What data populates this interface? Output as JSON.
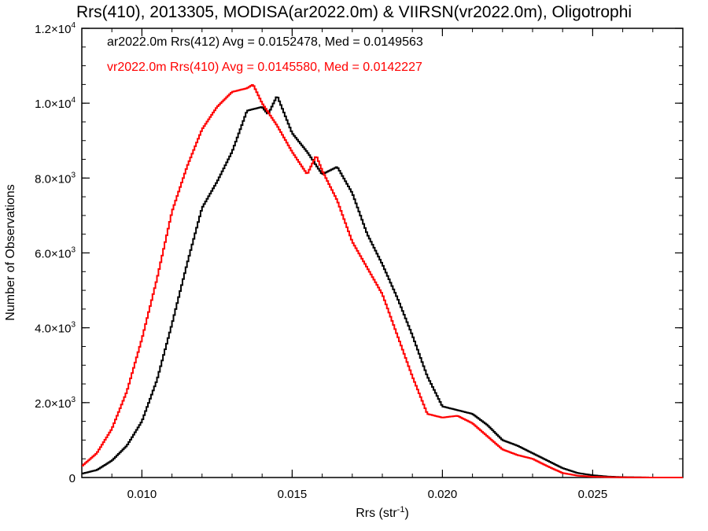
{
  "chart_data": {
    "type": "line",
    "title": "Rrs(410), 2013305, MODISA(ar2022.0m) & VIIRSN(vr2022.0m), Oligotrophi",
    "xlabel": "Rrs (str",
    "xlabel_sup": "-1",
    "xlabel_end": ")",
    "ylabel": "Number of Observations",
    "xlim": [
      0.008,
      0.028
    ],
    "ylim": [
      0,
      12000
    ],
    "xticks": [
      {
        "value": 0.01,
        "label": "0.010"
      },
      {
        "value": 0.015,
        "label": "0.015"
      },
      {
        "value": 0.02,
        "label": "0.020"
      },
      {
        "value": 0.025,
        "label": "0.025"
      }
    ],
    "yticks": [
      {
        "value": 0,
        "label": "0",
        "exp": ""
      },
      {
        "value": 2000,
        "label": "2.0×10",
        "exp": "3"
      },
      {
        "value": 4000,
        "label": "4.0×10",
        "exp": "3"
      },
      {
        "value": 6000,
        "label": "6.0×10",
        "exp": "3"
      },
      {
        "value": 8000,
        "label": "8.0×10",
        "exp": "3"
      },
      {
        "value": 10000,
        "label": "1.0×10",
        "exp": "4"
      },
      {
        "value": 12000,
        "label": "1.2×10",
        "exp": "4"
      }
    ],
    "grid": false,
    "annotations": [
      {
        "text": "ar2022.0m Rrs(412) Avg = 0.0152478, Med = 0.0149563",
        "color": "#000000"
      },
      {
        "text": "vr2022.0m Rrs(410) Avg = 0.0145580, Med = 0.0142227",
        "color": "#ff0000"
      }
    ],
    "series": [
      {
        "color": "#000000",
        "x": [
          0.008,
          0.0085,
          0.009,
          0.0095,
          0.01,
          0.0105,
          0.011,
          0.0115,
          0.012,
          0.0125,
          0.013,
          0.0135,
          0.014,
          0.0142,
          0.0145,
          0.015,
          0.0155,
          0.016,
          0.0165,
          0.017,
          0.0175,
          0.018,
          0.0185,
          0.019,
          0.0195,
          0.02,
          0.0205,
          0.021,
          0.0215,
          0.022,
          0.0225,
          0.023,
          0.0235,
          0.024,
          0.0245,
          0.025,
          0.0255,
          0.026,
          0.0265,
          0.027,
          0.028
        ],
        "y": [
          100,
          200,
          450,
          850,
          1500,
          2600,
          4100,
          5700,
          7200,
          7900,
          8700,
          9800,
          9900,
          9700,
          10200,
          9200,
          8700,
          8100,
          8300,
          7600,
          6500,
          5700,
          4800,
          3800,
          2700,
          1900,
          1800,
          1700,
          1400,
          1000,
          850,
          650,
          450,
          250,
          120,
          60,
          25,
          10,
          5,
          0,
          0
        ]
      },
      {
        "color": "#ff0000",
        "x": [
          0.008,
          0.0085,
          0.009,
          0.0095,
          0.01,
          0.0105,
          0.011,
          0.0115,
          0.012,
          0.0125,
          0.013,
          0.0135,
          0.0137,
          0.014,
          0.0145,
          0.015,
          0.0155,
          0.0158,
          0.016,
          0.0165,
          0.017,
          0.0175,
          0.018,
          0.0185,
          0.019,
          0.0195,
          0.02,
          0.0205,
          0.021,
          0.0215,
          0.022,
          0.0225,
          0.023,
          0.0235,
          0.024,
          0.0245,
          0.025,
          0.0255,
          0.026,
          0.027,
          0.028
        ],
        "y": [
          300,
          650,
          1300,
          2300,
          3700,
          5300,
          7100,
          8300,
          9300,
          9900,
          10300,
          10400,
          10500,
          10000,
          9400,
          8700,
          8100,
          8600,
          8200,
          7400,
          6300,
          5600,
          4900,
          3800,
          2700,
          1700,
          1600,
          1650,
          1450,
          1100,
          750,
          600,
          500,
          300,
          120,
          50,
          20,
          10,
          5,
          0,
          0
        ]
      }
    ]
  }
}
